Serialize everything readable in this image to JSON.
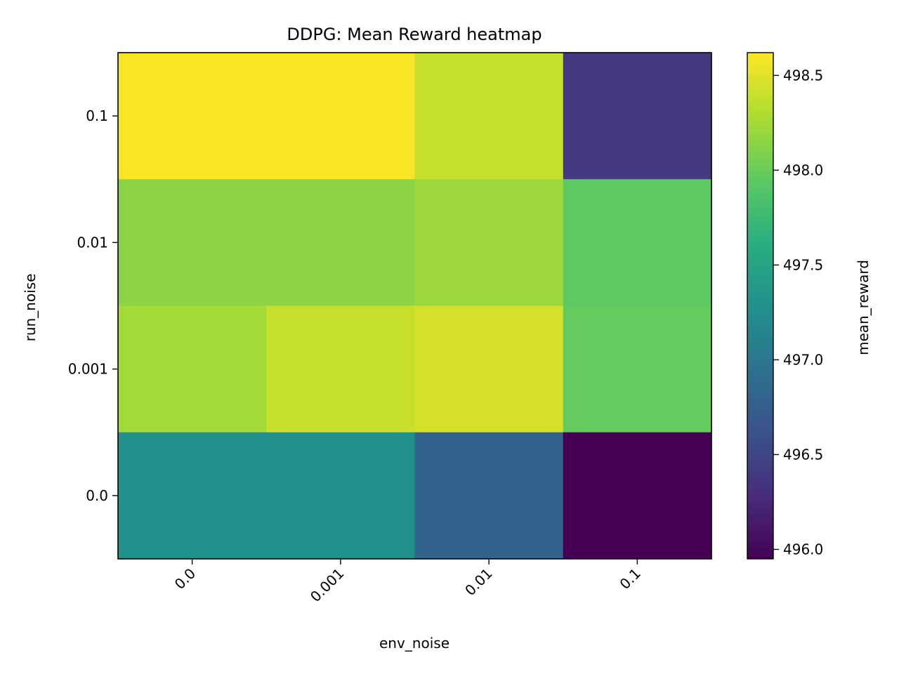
{
  "chart_data": {
    "type": "heatmap",
    "title": "DDPG: Mean Reward heatmap",
    "xlabel": "env_noise",
    "ylabel": "run_noise",
    "x_categories": [
      "0.0",
      "0.001",
      "0.01",
      "0.1"
    ],
    "y_categories_top_to_bottom": [
      "0.1",
      "0.01",
      "0.001",
      "0.0"
    ],
    "values": [
      [
        498.6,
        498.6,
        498.4,
        496.4
      ],
      [
        498.15,
        498.15,
        498.2,
        497.95
      ],
      [
        498.25,
        498.4,
        498.45,
        497.98
      ],
      [
        497.3,
        497.3,
        496.8,
        495.95
      ]
    ],
    "colorbar": {
      "label": "mean_reward",
      "vmin": 495.95,
      "vmax": 498.62,
      "ticks": [
        "496.0",
        "496.5",
        "497.0",
        "497.5",
        "498.0",
        "498.5"
      ],
      "colormap": "viridis"
    },
    "grid": false
  }
}
